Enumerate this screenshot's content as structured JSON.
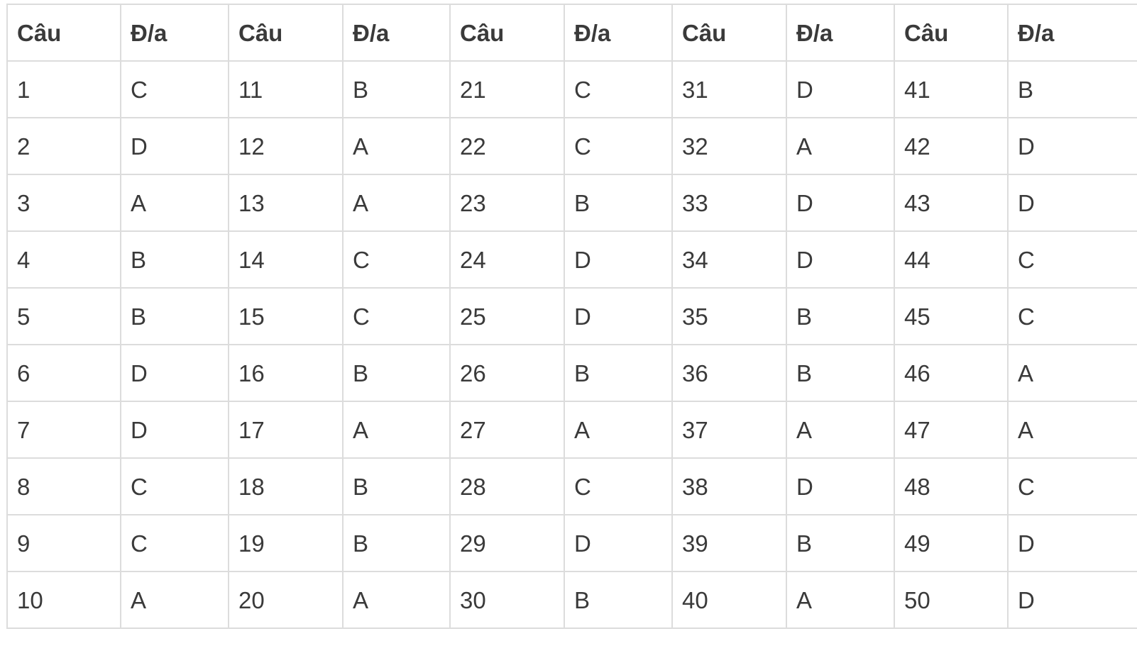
{
  "table": {
    "headers": [
      "Câu",
      "Đ/a",
      "Câu",
      "Đ/a",
      "Câu",
      "Đ/a",
      "Câu",
      "Đ/a",
      "Câu",
      "Đ/a"
    ],
    "rows": [
      [
        "1",
        "C",
        "11",
        "B",
        "21",
        "C",
        "31",
        "D",
        "41",
        "B"
      ],
      [
        "2",
        "D",
        "12",
        "A",
        "22",
        "C",
        "32",
        "A",
        "42",
        "D"
      ],
      [
        "3",
        "A",
        "13",
        "A",
        "23",
        "B",
        "33",
        "D",
        "43",
        "D"
      ],
      [
        "4",
        "B",
        "14",
        "C",
        "24",
        "D",
        "34",
        "D",
        "44",
        "C"
      ],
      [
        "5",
        "B",
        "15",
        "C",
        "25",
        "D",
        "35",
        "B",
        "45",
        "C"
      ],
      [
        "6",
        "D",
        "16",
        "B",
        "26",
        "B",
        "36",
        "B",
        "46",
        "A"
      ],
      [
        "7",
        "D",
        "17",
        "A",
        "27",
        "A",
        "37",
        "A",
        "47",
        "A"
      ],
      [
        "8",
        "C",
        "18",
        "B",
        "28",
        "C",
        "38",
        "D",
        "48",
        "C"
      ],
      [
        "9",
        "C",
        "19",
        "B",
        "29",
        "D",
        "39",
        "B",
        "49",
        "D"
      ],
      [
        "10",
        "A",
        "20",
        "A",
        "30",
        "B",
        "40",
        "A",
        "50",
        "D"
      ]
    ]
  }
}
